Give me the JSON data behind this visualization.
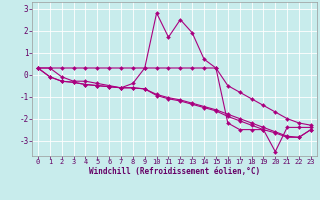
{
  "xlabel": "Windchill (Refroidissement éolien,°C)",
  "background_color": "#c8ecec",
  "grid_color": "#aadddd",
  "line_color": "#aa007f",
  "xlim": [
    -0.5,
    23.5
  ],
  "ylim": [
    -3.7,
    3.3
  ],
  "xticks": [
    0,
    1,
    2,
    3,
    4,
    5,
    6,
    7,
    8,
    9,
    10,
    11,
    12,
    13,
    14,
    15,
    16,
    17,
    18,
    19,
    20,
    21,
    22,
    23
  ],
  "yticks": [
    -3,
    -2,
    -1,
    0,
    1,
    2,
    3
  ],
  "series": [
    [
      0.3,
      0.3,
      -0.1,
      -0.3,
      -0.3,
      -0.4,
      -0.5,
      -0.6,
      -0.4,
      0.3,
      2.8,
      1.7,
      2.5,
      1.9,
      0.7,
      0.3,
      -2.2,
      -2.5,
      -2.5,
      -2.5,
      -3.5,
      -2.4,
      -2.4,
      -2.4
    ],
    [
      0.3,
      0.3,
      0.3,
      0.3,
      0.3,
      0.3,
      0.3,
      0.3,
      0.3,
      0.3,
      0.3,
      0.3,
      0.3,
      0.3,
      0.3,
      0.3,
      -0.5,
      -0.8,
      -1.1,
      -1.4,
      -1.7,
      -2.0,
      -2.2,
      -2.3
    ],
    [
      0.3,
      -0.1,
      -0.3,
      -0.35,
      -0.45,
      -0.5,
      -0.55,
      -0.6,
      -0.6,
      -0.65,
      -0.9,
      -1.05,
      -1.15,
      -1.3,
      -1.45,
      -1.6,
      -1.8,
      -2.0,
      -2.2,
      -2.4,
      -2.6,
      -2.8,
      -2.85,
      -2.5
    ],
    [
      0.3,
      -0.1,
      -0.3,
      -0.35,
      -0.45,
      -0.5,
      -0.55,
      -0.6,
      -0.6,
      -0.65,
      -0.95,
      -1.1,
      -1.2,
      -1.35,
      -1.5,
      -1.65,
      -1.9,
      -2.1,
      -2.3,
      -2.5,
      -2.65,
      -2.85,
      -2.85,
      -2.5
    ]
  ],
  "xlabel_fontsize": 5.5,
  "tick_fontsize": 5.0,
  "line_width": 0.8,
  "marker_size": 2.0
}
